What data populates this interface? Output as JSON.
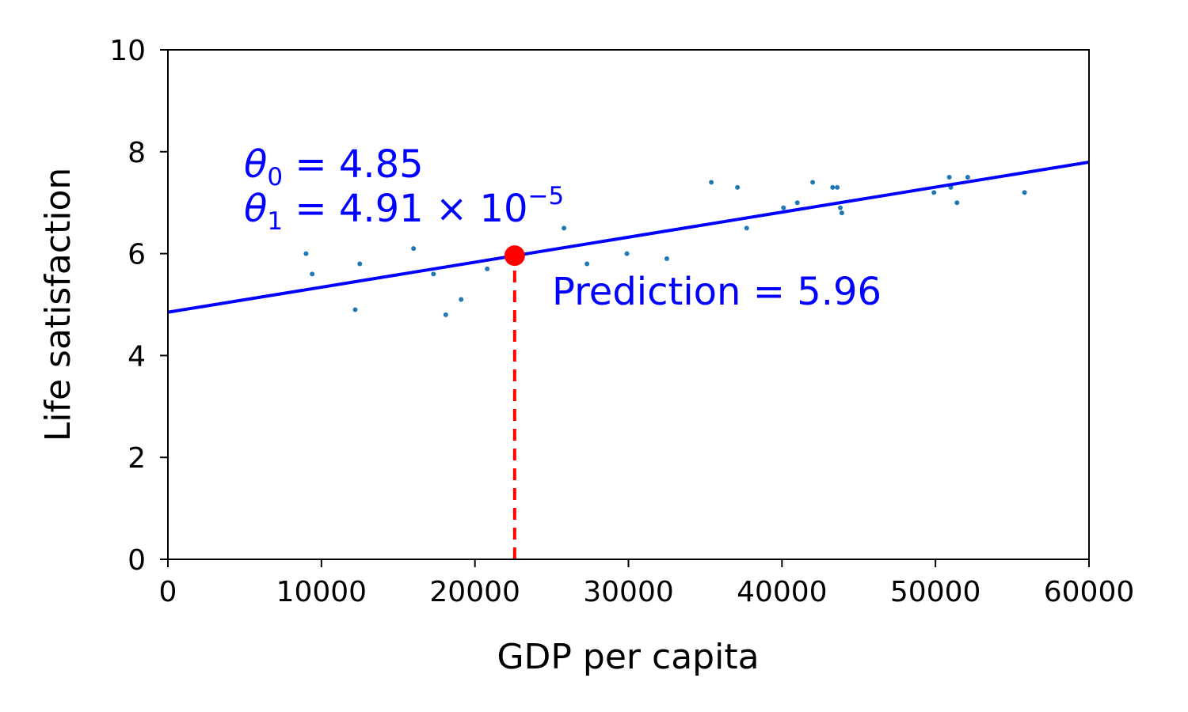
{
  "chart_data": {
    "type": "scatter",
    "xlabel": "GDP per capita",
    "ylabel": "Life satisfaction",
    "xlim": [
      0,
      60000
    ],
    "ylim": [
      0,
      10
    ],
    "xticks": [
      "0",
      "10000",
      "20000",
      "30000",
      "40000",
      "50000",
      "60000"
    ],
    "yticks": [
      "0",
      "2",
      "4",
      "6",
      "8",
      "10"
    ],
    "grid": false,
    "series": [
      {
        "kind": "scatter",
        "color": "#1f77b4",
        "points": [
          [
            9000,
            6.0
          ],
          [
            9400,
            5.6
          ],
          [
            12200,
            4.9
          ],
          [
            12500,
            5.8
          ],
          [
            16000,
            6.1
          ],
          [
            17300,
            5.6
          ],
          [
            18100,
            4.8
          ],
          [
            19100,
            5.1
          ],
          [
            20800,
            5.7
          ],
          [
            25800,
            6.5
          ],
          [
            27300,
            5.8
          ],
          [
            29900,
            6.0
          ],
          [
            32500,
            5.9
          ],
          [
            35400,
            7.4
          ],
          [
            37100,
            7.3
          ],
          [
            37700,
            6.5
          ],
          [
            40100,
            6.9
          ],
          [
            41000,
            7.0
          ],
          [
            42000,
            7.4
          ],
          [
            43300,
            7.3
          ],
          [
            43600,
            7.3
          ],
          [
            43800,
            6.9
          ],
          [
            43900,
            6.8
          ],
          [
            49900,
            7.2
          ],
          [
            50900,
            7.5
          ],
          [
            51000,
            7.3
          ],
          [
            51400,
            7.0
          ],
          [
            52100,
            7.5
          ],
          [
            55800,
            7.2
          ]
        ]
      },
      {
        "kind": "line",
        "color": "#0000ff",
        "intercept": 4.85,
        "slope": 4.91e-05,
        "x_range": [
          0,
          60000
        ]
      },
      {
        "kind": "prediction",
        "color": "#ff0000",
        "x": 22587,
        "y": 5.96
      }
    ],
    "annotations": {
      "theta0": {
        "symbol": "θ",
        "sub": "0",
        "text": " = 4.85",
        "color": "#0000ff"
      },
      "theta1": {
        "symbol": "θ",
        "sub": "1",
        "text": " = 4.91 × 10",
        "sup": "−5",
        "color": "#0000ff"
      },
      "prediction": {
        "text": "Prediction = 5.96",
        "color": "#0000ff"
      }
    }
  }
}
